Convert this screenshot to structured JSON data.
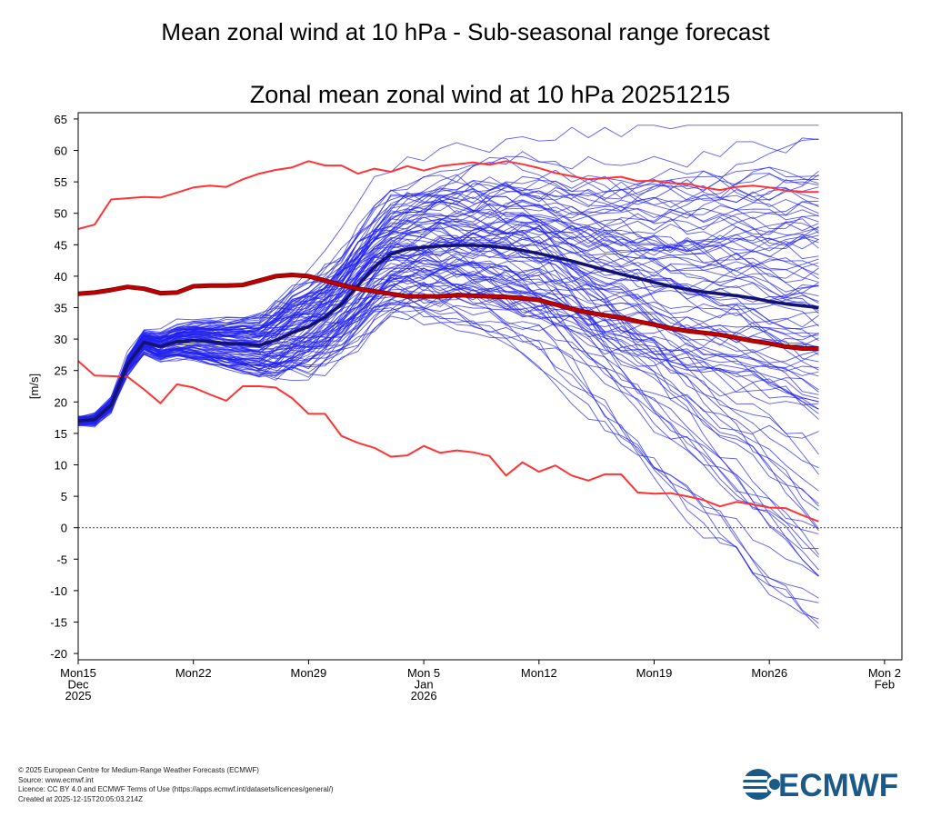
{
  "page": {
    "title": "Mean zonal wind at 10 hPa - Sub-seasonal range forecast",
    "footer_lines": [
      "© 2025 European Centre for Medium-Range Weather Forecasts (ECMWF)",
      "Source: www.ecmwf.int",
      "Licence: CC BY 4.0 and ECMWF Terms of Use (https://apps.ecmwf.int/datasets/licences/general/)",
      "Created at 2025-12-15T20:05:03.214Z"
    ],
    "logo_text": "ECMWF",
    "colors": {
      "ensemble": "#2222ee",
      "ensemble_mean": "#141470",
      "climate_bounds": "#ff3333",
      "climate_mean": "#c00000",
      "zero_line": "#555555"
    }
  },
  "chart_data": {
    "type": "line",
    "title": "Zonal mean zonal wind at 10 hPa 20251215",
    "ylabel": "[m/s]",
    "xlabel": "",
    "ylim": [
      -21,
      66
    ],
    "xlim": [
      0,
      48.5
    ],
    "x_unit": "days from Mon15 Dec 2025",
    "yticks": [
      65,
      60,
      55,
      50,
      45,
      40,
      35,
      30,
      25,
      20,
      15,
      10,
      5,
      0,
      -5,
      -10,
      -15,
      -20
    ],
    "xticks": [
      {
        "x": 0,
        "lines": [
          "Mon15",
          "Dec",
          "2025"
        ]
      },
      {
        "x": 7,
        "lines": [
          "Mon22"
        ]
      },
      {
        "x": 14,
        "lines": [
          "Mon29"
        ]
      },
      {
        "x": 21,
        "lines": [
          "Mon 5",
          "Jan",
          "2026"
        ]
      },
      {
        "x": 28,
        "lines": [
          "Mon12"
        ]
      },
      {
        "x": 35,
        "lines": [
          "Mon19"
        ]
      },
      {
        "x": 42,
        "lines": [
          "Mon26"
        ]
      },
      {
        "x": 49,
        "lines": [
          "Mon 2",
          "Feb"
        ]
      }
    ],
    "zero_line": true,
    "grid": false,
    "series": [
      {
        "role": "climate_max",
        "x": [
          0,
          1,
          2,
          3,
          4,
          5,
          6,
          7,
          8,
          9,
          10,
          11,
          12,
          13,
          14,
          15,
          16,
          17,
          18,
          19,
          20,
          21,
          22,
          23,
          24,
          25,
          26,
          27,
          28,
          29,
          30,
          31,
          32,
          33,
          34,
          35,
          36,
          37,
          38,
          39,
          40,
          41,
          42,
          43,
          44,
          45
        ],
        "values": [
          47.5,
          48.2,
          52.2,
          52.4,
          52.6,
          52.5,
          53.3,
          54.1,
          54.4,
          54.2,
          55.4,
          56.3,
          56.9,
          57.3,
          58.3,
          57.6,
          57.6,
          56.3,
          57.1,
          56.6,
          57.5,
          56.8,
          57.5,
          57.8,
          58.1,
          57.7,
          58.3,
          57.8,
          57.2,
          56.4,
          55.9,
          55.4,
          55.6,
          55.8,
          55.1,
          55.2,
          54.8,
          54.7,
          54.1,
          53.7,
          54.2,
          54.4,
          54.1,
          53.6,
          53.4,
          53.4
        ]
      },
      {
        "role": "climate_min",
        "x": [
          0,
          1,
          2,
          3,
          4,
          5,
          6,
          7,
          8,
          9,
          10,
          11,
          12,
          13,
          14,
          15,
          16,
          17,
          18,
          19,
          20,
          21,
          22,
          23,
          24,
          25,
          26,
          27,
          28,
          29,
          30,
          31,
          32,
          33,
          34,
          35,
          36,
          37,
          38,
          39,
          40,
          41,
          42,
          43,
          44,
          45
        ],
        "values": [
          26.5,
          24.2,
          24.1,
          24.0,
          22.0,
          19.8,
          22.8,
          22.3,
          21.2,
          20.2,
          22.5,
          22.5,
          22.3,
          20.6,
          18.1,
          18.1,
          14.6,
          13.5,
          12.7,
          11.3,
          11.5,
          13.0,
          11.9,
          12.3,
          12.0,
          11.4,
          8.3,
          10.4,
          8.9,
          9.9,
          8.3,
          7.5,
          8.5,
          8.5,
          5.6,
          5.4,
          5.5,
          5.0,
          4.4,
          3.4,
          4.1,
          3.7,
          3.2,
          3.1,
          2.0,
          1.0
        ]
      },
      {
        "role": "climate_mean",
        "x": [
          0,
          1,
          2,
          3,
          4,
          5,
          6,
          7,
          8,
          9,
          10,
          11,
          12,
          13,
          14,
          15,
          16,
          17,
          18,
          19,
          20,
          21,
          22,
          23,
          24,
          25,
          26,
          27,
          28,
          29,
          30,
          31,
          32,
          33,
          34,
          35,
          36,
          37,
          38,
          39,
          40,
          41,
          42,
          43,
          44,
          45
        ],
        "values": [
          37.2,
          37.4,
          37.8,
          38.3,
          38.0,
          37.3,
          37.4,
          38.4,
          38.5,
          38.5,
          38.6,
          39.3,
          40.0,
          40.2,
          40.0,
          39.3,
          38.6,
          38.0,
          37.6,
          37.2,
          36.8,
          36.8,
          36.8,
          37.0,
          36.9,
          36.8,
          36.7,
          36.5,
          36.2,
          35.5,
          34.8,
          34.2,
          33.8,
          33.4,
          32.8,
          32.3,
          31.7,
          31.3,
          31.0,
          30.7,
          30.2,
          29.7,
          29.3,
          28.8,
          28.5,
          28.5
        ]
      },
      {
        "role": "ensemble_mean",
        "x": [
          0,
          1,
          2,
          3,
          4,
          5,
          6,
          7,
          8,
          9,
          10,
          11,
          12,
          13,
          14,
          15,
          16,
          17,
          18,
          19,
          20,
          21,
          22,
          23,
          24,
          25,
          26,
          27,
          28,
          29,
          30,
          31,
          32,
          33,
          34,
          35,
          36,
          37,
          38,
          39,
          40,
          41,
          42,
          43,
          44,
          45
        ],
        "values": [
          17.0,
          17.2,
          19.5,
          26.0,
          29.5,
          28.8,
          29.6,
          29.8,
          29.6,
          29.3,
          29.2,
          29.0,
          29.8,
          31.0,
          32.0,
          33.5,
          35.5,
          38.5,
          41.5,
          43.5,
          44.3,
          44.6,
          44.8,
          44.9,
          44.9,
          44.8,
          44.5,
          44.1,
          43.6,
          43.0,
          42.4,
          41.7,
          41.0,
          40.3,
          39.7,
          39.0,
          38.4,
          37.9,
          37.5,
          37.2,
          36.9,
          36.5,
          36.0,
          35.6,
          35.3,
          35.0
        ]
      }
    ],
    "ensemble_members_count": 101
  }
}
